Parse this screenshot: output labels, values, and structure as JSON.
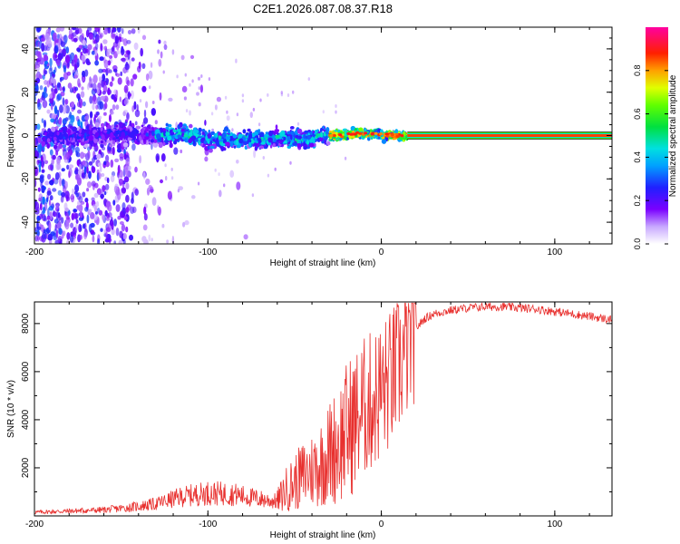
{
  "title": "C2E1.2026.087.08.37.R18",
  "chart_data": [
    {
      "type": "heatmap",
      "name": "spectrogram",
      "xlabel": "Height of straight line (km)",
      "ylabel": "Frequency (Hz)",
      "xlim": [
        -200,
        133
      ],
      "ylim": [
        -50,
        50
      ],
      "xticks": [
        -200,
        -100,
        0,
        100
      ],
      "xtick_labels": [
        "-200",
        "-100",
        "0",
        "100"
      ],
      "yticks": [
        -40,
        -20,
        0,
        20,
        40
      ],
      "ytick_labels": [
        "-40",
        "-20",
        "0",
        "20",
        "40"
      ],
      "colorbar": {
        "label": "Normalized spectral amplitude",
        "range": [
          0,
          1
        ],
        "ticks": [
          0.0,
          0.2,
          0.4,
          0.6,
          0.8
        ],
        "tick_labels": [
          "0.0",
          "0.2",
          "0.4",
          "0.6",
          "0.8"
        ]
      },
      "ridge": {
        "x": [
          -190,
          -170,
          -150,
          -130,
          -115,
          -100,
          -80,
          -60,
          -45,
          -35,
          -25,
          -15,
          -5,
          5,
          15,
          133
        ],
        "y": [
          -1,
          0,
          1,
          0,
          1,
          -2,
          -2,
          -1,
          -2,
          0,
          0,
          1,
          1,
          0,
          0,
          0
        ]
      },
      "steady_line": {
        "x_start": 15,
        "x_end": 133,
        "frequency": 0,
        "amplitude": 1.0
      }
    },
    {
      "type": "line",
      "name": "snr",
      "xlabel": "Height of straight line (km)",
      "ylabel": "SNR (10 * v/v)",
      "xlim": [
        -200,
        133
      ],
      "ylim": [
        0,
        8900
      ],
      "xticks": [
        -200,
        -100,
        0,
        100
      ],
      "xtick_labels": [
        "-200",
        "-100",
        "0",
        "100"
      ],
      "yticks": [
        2000,
        4000,
        6000,
        8000
      ],
      "ytick_labels": [
        "2000",
        "4000",
        "6000",
        "8000"
      ],
      "color": "#e8302e",
      "series": [
        {
          "name": "SNR",
          "x": [
            -200,
            -180,
            -160,
            -145,
            -130,
            -115,
            -100,
            -85,
            -70,
            -60,
            -55,
            -50,
            -45,
            -40,
            -35,
            -30,
            -25,
            -20,
            -15,
            -10,
            -5,
            0,
            5,
            10,
            15,
            20,
            25,
            30,
            40,
            50,
            60,
            70,
            80,
            90,
            100,
            110,
            120,
            133
          ],
          "y": [
            150,
            200,
            250,
            350,
            500,
            800,
            950,
            900,
            700,
            600,
            1100,
            1400,
            1700,
            1900,
            2200,
            2600,
            3000,
            3500,
            4000,
            4500,
            4800,
            5200,
            5600,
            6200,
            7000,
            7800,
            8200,
            8400,
            8550,
            8650,
            8700,
            8700,
            8650,
            8600,
            8500,
            8400,
            8300,
            8150
          ]
        }
      ]
    }
  ]
}
